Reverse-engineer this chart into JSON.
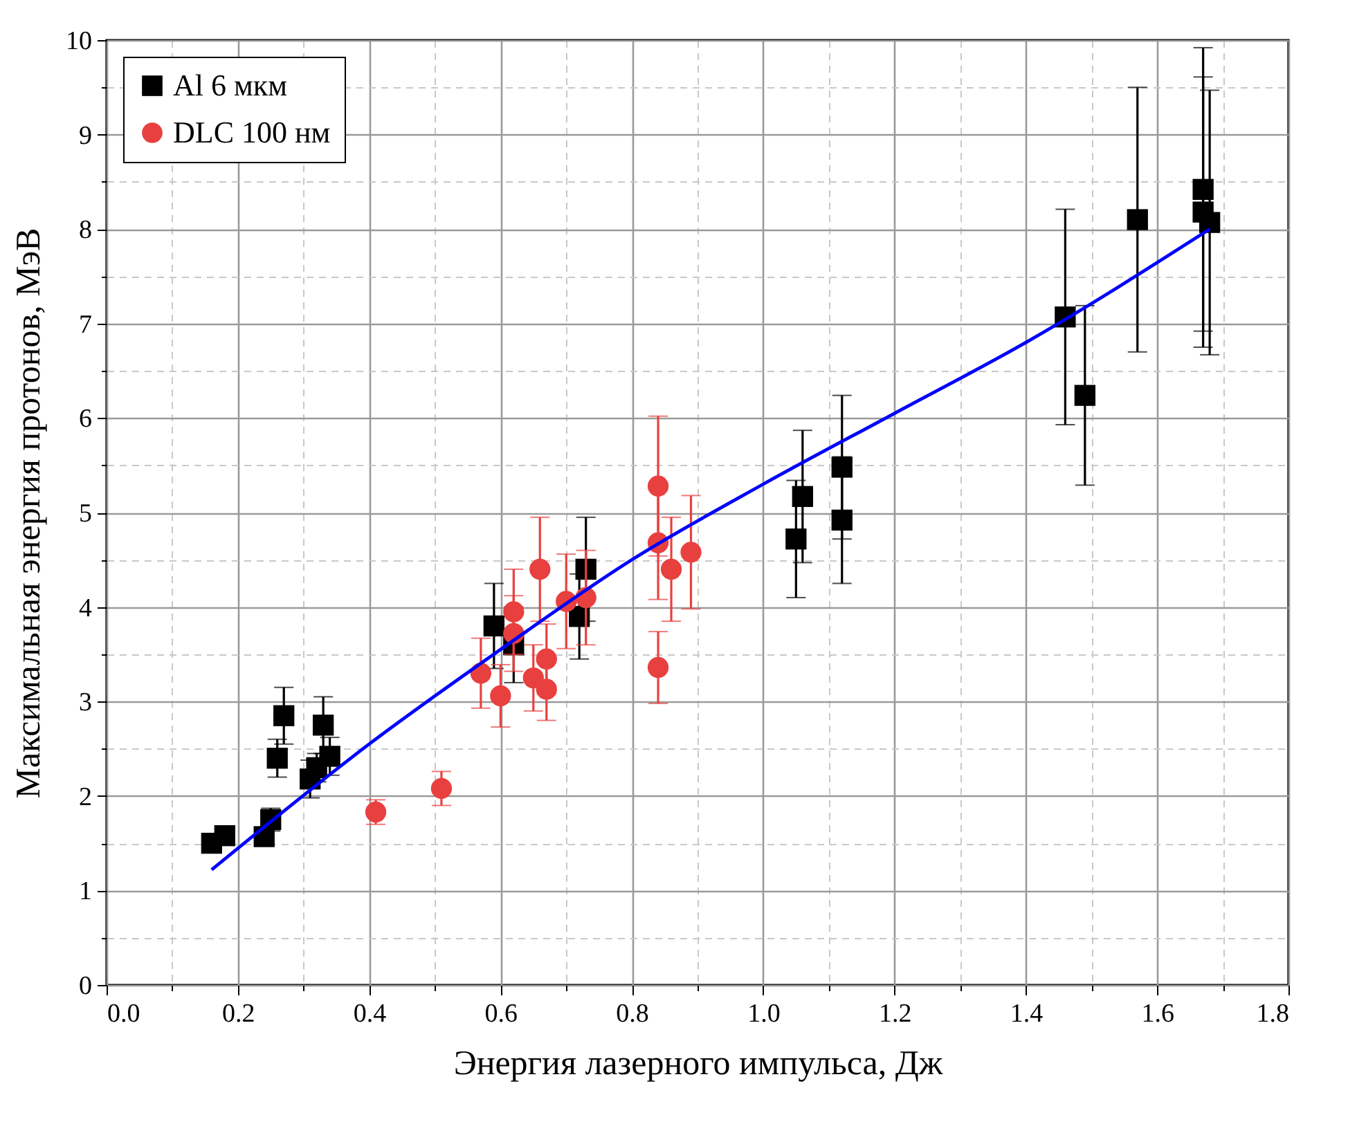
{
  "chart_data": {
    "type": "scatter",
    "xlabel": "Энергия лазерного импульса, Дж",
    "ylabel": "Максимальная энергия протонов, МэВ",
    "xlim": [
      0,
      1.8
    ],
    "ylim": [
      0,
      10
    ],
    "xticks": [
      {
        "value": 0,
        "label": "0.0"
      },
      {
        "value": 0.1,
        "label": null
      },
      {
        "value": 0.2,
        "label": "0.2"
      },
      {
        "value": 0.3,
        "label": null
      },
      {
        "value": 0.4,
        "label": "0.4"
      },
      {
        "value": 0.5,
        "label": null
      },
      {
        "value": 0.6,
        "label": "0.6"
      },
      {
        "value": 0.7,
        "label": null
      },
      {
        "value": 0.8,
        "label": "0.8"
      },
      {
        "value": 0.9,
        "label": null
      },
      {
        "value": 1,
        "label": "1.0"
      },
      {
        "value": 1.1,
        "label": null
      },
      {
        "value": 1.2,
        "label": "1.2"
      },
      {
        "value": 1.3,
        "label": null
      },
      {
        "value": 1.4,
        "label": "1.4"
      },
      {
        "value": 1.5,
        "label": null
      },
      {
        "value": 1.6,
        "label": "1.6"
      },
      {
        "value": 1.7,
        "label": null
      },
      {
        "value": 1.8,
        "label": "1.8"
      }
    ],
    "yticks": [
      0,
      {
        "value": 0.5,
        "label": null
      },
      1,
      {
        "value": 1.5,
        "label": null
      },
      2,
      {
        "value": 2.5,
        "label": null
      },
      3,
      {
        "value": 3.5,
        "label": null
      },
      4,
      {
        "value": 4.5,
        "label": null
      },
      5,
      {
        "value": 5.5,
        "label": null
      },
      6,
      {
        "value": 6.5,
        "label": null
      },
      7,
      {
        "value": 7.5,
        "label": null
      },
      8,
      {
        "value": 8.5,
        "label": null
      },
      9,
      {
        "value": 9.5,
        "label": null
      },
      10
    ],
    "grid": true,
    "legend": "top left",
    "series": [
      {
        "name": "Al 6 мкм",
        "marker": "square",
        "color": "#000000",
        "x": [
          0.16,
          0.18,
          0.24,
          0.25,
          0.26,
          0.27,
          0.31,
          0.32,
          0.33,
          0.34,
          0.59,
          0.62,
          0.72,
          0.73,
          1.05,
          1.06,
          1.12,
          1.12,
          1.46,
          1.49,
          1.57,
          1.67,
          1.67,
          1.68
        ],
        "values": [
          1.5,
          1.58,
          1.57,
          1.75,
          2.4,
          2.85,
          2.18,
          2.3,
          2.75,
          2.42,
          3.8,
          3.6,
          3.9,
          4.4,
          4.72,
          5.17,
          4.92,
          5.48,
          7.07,
          6.24,
          8.1,
          8.42,
          8.18,
          8.07
        ],
        "errors": [
          null,
          null,
          null,
          0.12,
          0.2,
          0.3,
          0.2,
          0.15,
          0.3,
          0.2,
          0.45,
          0.4,
          0.45,
          0.55,
          0.62,
          0.7,
          0.67,
          0.76,
          1.14,
          0.95,
          1.4,
          1.5,
          1.43,
          1.4
        ]
      },
      {
        "name": "DLC 100 нм",
        "marker": "circle",
        "color": "#e8403f",
        "x": [
          0.41,
          0.51,
          0.57,
          0.6,
          0.62,
          0.62,
          0.65,
          0.66,
          0.67,
          0.67,
          0.7,
          0.73,
          0.84,
          0.84,
          0.84,
          0.86,
          0.89
        ],
        "values": [
          1.83,
          2.08,
          3.3,
          3.06,
          3.95,
          3.72,
          3.25,
          4.4,
          3.45,
          3.13,
          4.06,
          4.1,
          5.28,
          4.68,
          3.36,
          4.4,
          4.58
        ],
        "errors": [
          0.13,
          0.18,
          0.37,
          0.33,
          0.45,
          0.4,
          0.35,
          0.55,
          0.37,
          0.33,
          0.5,
          0.5,
          0.74,
          0.6,
          0.38,
          0.55,
          0.6
        ]
      },
      {
        "type": "line",
        "marker": "none",
        "color": "#0000ff",
        "x": [
          0.16,
          0.4,
          0.6,
          0.8,
          1.0,
          1.2,
          1.4,
          1.68
        ],
        "values": [
          1.22,
          2.55,
          3.55,
          4.5,
          5.3,
          6.05,
          6.8,
          8.0
        ]
      }
    ]
  }
}
